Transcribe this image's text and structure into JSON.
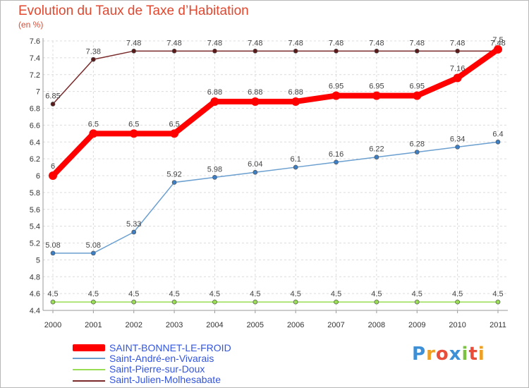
{
  "header": {
    "title": "Evolution du Taux de Taxe d’Habitation",
    "unit": "(en %)"
  },
  "chart_data": {
    "type": "line",
    "title": "Evolution du Taux de Taxe d’Habitation",
    "ylabel": "(en %)",
    "xlabel": "",
    "ylim": [
      4.4,
      7.6
    ],
    "ytick_step": 0.2,
    "ytick_labels": [
      "4.4",
      "4.6",
      "4.8",
      "5",
      "5.2",
      "5.4",
      "5.6",
      "5.8",
      "6",
      "6.2",
      "6.4",
      "6.6",
      "6.8",
      "7",
      "7.2",
      "7.4",
      "7.6"
    ],
    "x": [
      "2000",
      "2001",
      "2002",
      "2003",
      "2004",
      "2005",
      "2006",
      "2007",
      "2008",
      "2009",
      "2010",
      "2011"
    ],
    "series": [
      {
        "name": "Saint-Julien-Molhesabate",
        "color": "#7a2a2a",
        "labels": [
          "6.85",
          "7.38",
          "7.48",
          "7.48",
          "7.48",
          "7.48",
          "7.48",
          "7.48",
          "7.48",
          "7.48",
          "7.48",
          "7.48"
        ],
        "values": [
          6.85,
          7.38,
          7.48,
          7.48,
          7.48,
          7.48,
          7.48,
          7.48,
          7.48,
          7.48,
          7.48,
          7.48
        ]
      },
      {
        "name": "Saint-André-en-Vivarais",
        "color": "#6a9fd0",
        "labels": [
          "5.08",
          "5.08",
          "5.33",
          "5.92",
          "5.98",
          "6.04",
          "6.1",
          "6.16",
          "6.22",
          "6.28",
          "6.34",
          "6.4"
        ],
        "values": [
          5.08,
          5.08,
          5.33,
          5.92,
          5.98,
          6.04,
          6.1,
          6.16,
          6.22,
          6.28,
          6.34,
          6.4
        ]
      },
      {
        "name": "Saint-Pierre-sur-Doux",
        "color": "#99dd55",
        "labels": [
          "4.5",
          "4.5",
          "4.5",
          "4.5",
          "4.5",
          "4.5",
          "4.5",
          "4.5",
          "4.5",
          "4.5",
          "4.5",
          "4.5"
        ],
        "values": [
          4.5,
          4.5,
          4.5,
          4.5,
          4.5,
          4.5,
          4.5,
          4.5,
          4.5,
          4.5,
          4.5,
          4.5
        ]
      },
      {
        "name": "SAINT-BONNET-LE-FROID",
        "color": "#ff0000",
        "labels": [
          "6",
          "6.5",
          "6.5",
          "6.5",
          "6.88",
          "6.88",
          "6.88",
          "6.95",
          "6.95",
          "6.95",
          "7.16",
          "7.5"
        ],
        "values": [
          6.0,
          6.5,
          6.5,
          6.5,
          6.88,
          6.88,
          6.88,
          6.95,
          6.95,
          6.95,
          7.16,
          7.5
        ]
      }
    ]
  },
  "legend": {
    "items": [
      {
        "label": "SAINT-BONNET-LE-FROID",
        "color": "#ff0000"
      },
      {
        "label": "Saint-André-en-Vivarais",
        "color": "#6a9fd0"
      },
      {
        "label": "Saint-Pierre-sur-Doux",
        "color": "#99dd55"
      },
      {
        "label": "Saint-Julien-Molhesabate",
        "color": "#7a2a2a"
      }
    ]
  },
  "logo": {
    "text": "Proxiti",
    "letters": [
      "P",
      "r",
      "o",
      "x",
      "i",
      "t",
      "i"
    ],
    "colors": [
      "#3d8fd6",
      "#f0a020",
      "#e94e3a",
      "#3d8fd6",
      "#7cc242",
      "#e94e3a",
      "#f0a020"
    ]
  }
}
